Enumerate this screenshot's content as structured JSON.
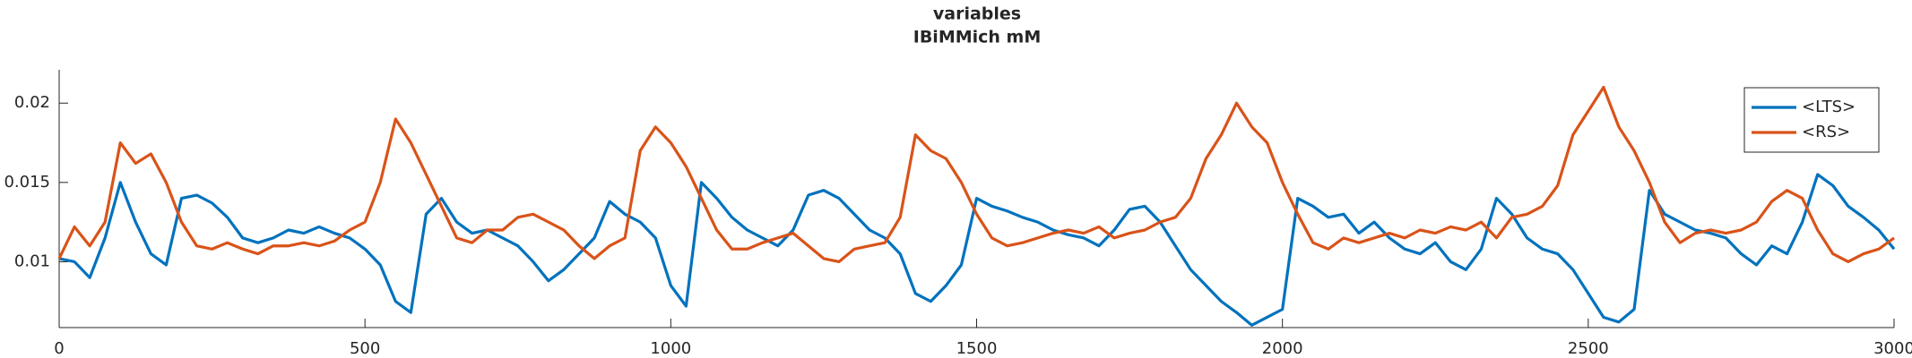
{
  "chart_data": {
    "type": "line",
    "title": "variables",
    "subtitle": "IBiMMich mM",
    "x": [
      0,
      25,
      50,
      75,
      100,
      125,
      150,
      175,
      200,
      225,
      250,
      275,
      300,
      325,
      350,
      375,
      400,
      425,
      450,
      475,
      500,
      525,
      550,
      575,
      600,
      625,
      650,
      675,
      700,
      725,
      750,
      775,
      800,
      825,
      850,
      875,
      900,
      925,
      950,
      975,
      1000,
      1025,
      1050,
      1075,
      1100,
      1125,
      1150,
      1175,
      1200,
      1225,
      1250,
      1275,
      1300,
      1325,
      1350,
      1375,
      1400,
      1425,
      1450,
      1475,
      1500,
      1525,
      1550,
      1575,
      1600,
      1625,
      1650,
      1675,
      1700,
      1725,
      1750,
      1775,
      1800,
      1825,
      1850,
      1875,
      1900,
      1925,
      1950,
      1975,
      2000,
      2025,
      2050,
      2075,
      2100,
      2125,
      2150,
      2175,
      2200,
      2225,
      2250,
      2275,
      2300,
      2325,
      2350,
      2375,
      2400,
      2425,
      2450,
      2475,
      2500,
      2525,
      2550,
      2575,
      2600,
      2625,
      2650,
      2675,
      2700,
      2725,
      2750,
      2775,
      2800,
      2825,
      2850,
      2875,
      2900,
      2925,
      2950,
      2975,
      3000
    ],
    "series": [
      {
        "name": "<LTS>",
        "color": "#0072BD",
        "values": [
          0.0102,
          0.01,
          0.009,
          0.0115,
          0.015,
          0.0125,
          0.0105,
          0.0098,
          0.014,
          0.0142,
          0.0137,
          0.0128,
          0.0115,
          0.0112,
          0.0115,
          0.012,
          0.0118,
          0.0122,
          0.0118,
          0.0115,
          0.0108,
          0.0098,
          0.0075,
          0.0068,
          0.013,
          0.014,
          0.0125,
          0.0118,
          0.012,
          0.0115,
          0.011,
          0.01,
          0.0088,
          0.0095,
          0.0105,
          0.0115,
          0.0138,
          0.013,
          0.0125,
          0.0115,
          0.0085,
          0.0072,
          0.015,
          0.014,
          0.0128,
          0.012,
          0.0115,
          0.011,
          0.012,
          0.0142,
          0.0145,
          0.014,
          0.013,
          0.012,
          0.0115,
          0.0105,
          0.008,
          0.0075,
          0.0085,
          0.0098,
          0.014,
          0.0135,
          0.0132,
          0.0128,
          0.0125,
          0.012,
          0.0117,
          0.0115,
          0.011,
          0.012,
          0.0133,
          0.0135,
          0.0125,
          0.011,
          0.0095,
          0.0085,
          0.0075,
          0.0068,
          0.006,
          0.0065,
          0.007,
          0.014,
          0.0135,
          0.0128,
          0.013,
          0.0118,
          0.0125,
          0.0115,
          0.0108,
          0.0105,
          0.0112,
          0.01,
          0.0095,
          0.0108,
          0.014,
          0.013,
          0.0115,
          0.0108,
          0.0105,
          0.0095,
          0.008,
          0.0065,
          0.0062,
          0.007,
          0.0145,
          0.013,
          0.0125,
          0.012,
          0.0118,
          0.0115,
          0.0105,
          0.0098,
          0.011,
          0.0105,
          0.0125,
          0.0155,
          0.0148,
          0.0135,
          0.0128,
          0.012,
          0.0108
        ]
      },
      {
        "name": "<RS>",
        "color": "#D95319",
        "values": [
          0.0102,
          0.0122,
          0.011,
          0.0125,
          0.0175,
          0.0162,
          0.0168,
          0.015,
          0.0125,
          0.011,
          0.0108,
          0.0112,
          0.0108,
          0.0105,
          0.011,
          0.011,
          0.0112,
          0.011,
          0.0113,
          0.012,
          0.0125,
          0.015,
          0.019,
          0.0175,
          0.0155,
          0.0135,
          0.0115,
          0.0112,
          0.012,
          0.012,
          0.0128,
          0.013,
          0.0125,
          0.012,
          0.011,
          0.0102,
          0.011,
          0.0115,
          0.017,
          0.0185,
          0.0175,
          0.016,
          0.014,
          0.012,
          0.0108,
          0.0108,
          0.0112,
          0.0115,
          0.0118,
          0.011,
          0.0102,
          0.01,
          0.0108,
          0.011,
          0.0112,
          0.0128,
          0.018,
          0.017,
          0.0165,
          0.015,
          0.013,
          0.0115,
          0.011,
          0.0112,
          0.0115,
          0.0118,
          0.012,
          0.0118,
          0.0122,
          0.0115,
          0.0118,
          0.012,
          0.0125,
          0.0128,
          0.014,
          0.0165,
          0.018,
          0.02,
          0.0185,
          0.0175,
          0.015,
          0.013,
          0.0112,
          0.0108,
          0.0115,
          0.0112,
          0.0115,
          0.0118,
          0.0115,
          0.012,
          0.0118,
          0.0122,
          0.012,
          0.0125,
          0.0115,
          0.0128,
          0.013,
          0.0135,
          0.0148,
          0.018,
          0.0195,
          0.021,
          0.0185,
          0.017,
          0.015,
          0.0125,
          0.0112,
          0.0118,
          0.012,
          0.0118,
          0.012,
          0.0125,
          0.0138,
          0.0145,
          0.014,
          0.012,
          0.0105,
          0.01,
          0.0105,
          0.0108,
          0.0115
        ]
      }
    ],
    "xlim": [
      0,
      3000
    ],
    "xticks": [
      0,
      500,
      1000,
      1500,
      2000,
      2500,
      3000
    ],
    "ylim": [
      0.00585,
      0.0221
    ],
    "yticks": [
      0.01,
      0.015,
      0.02
    ],
    "grid": false,
    "legend": "northeast"
  }
}
